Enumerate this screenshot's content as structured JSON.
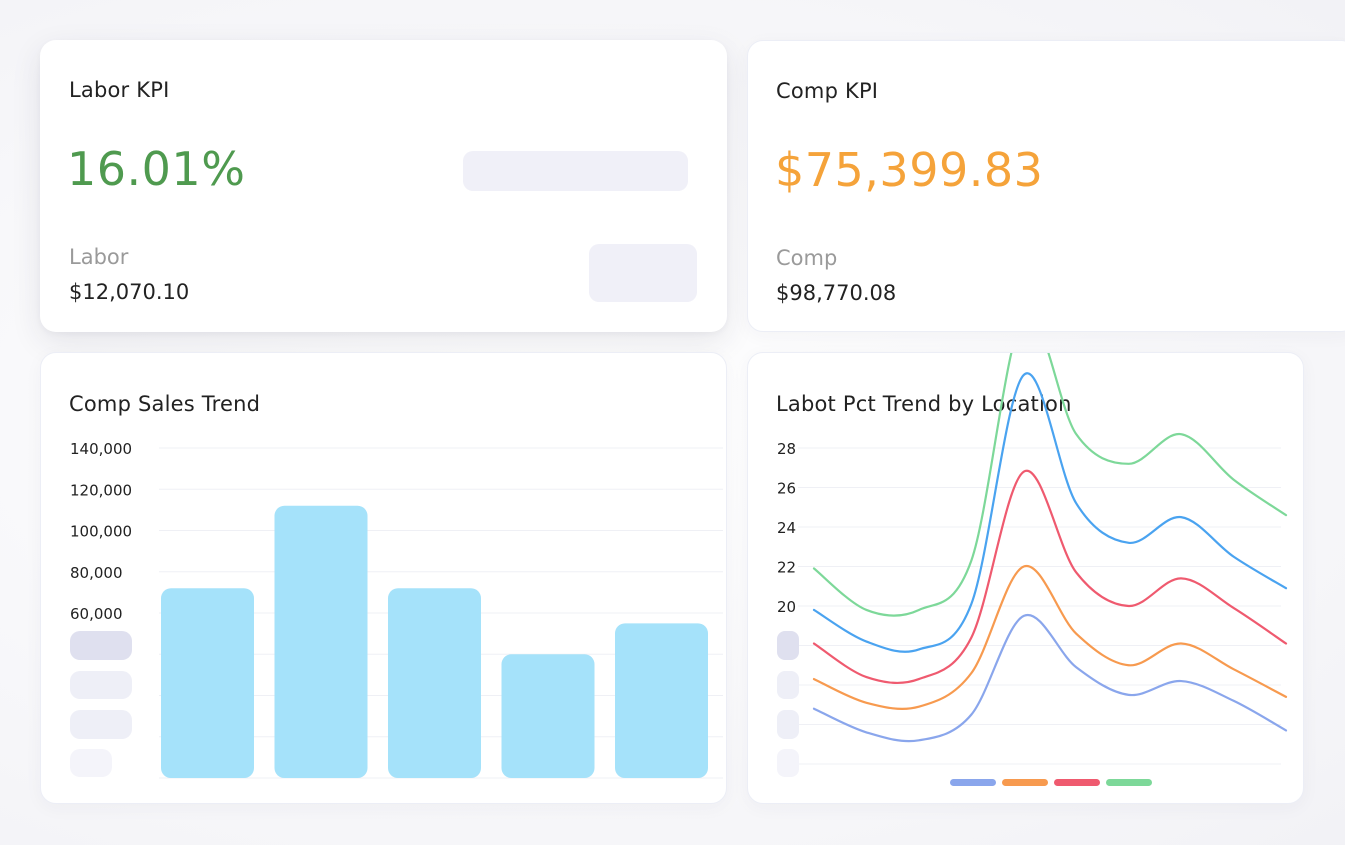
{
  "labor_kpi": {
    "title": "Labor KPI",
    "value": "16.01%",
    "value_color": "#4f9a4f",
    "sub_label": "Labor",
    "sub_value": "$12,070.10"
  },
  "comp_kpi": {
    "title": "Comp KPI",
    "value": "$75,399.83",
    "value_color": "#f5a33a",
    "sub_label": "Comp",
    "sub_value": "$98,770.08"
  },
  "comp_sales_trend": {
    "title": "Comp Sales Trend"
  },
  "labor_pct_trend": {
    "title": "Labot Pct Trend by Location"
  },
  "chart_data": [
    {
      "type": "bar",
      "title": "Comp Sales Trend",
      "categories": [
        "",
        "",
        "",
        "",
        ""
      ],
      "values": [
        72000,
        112000,
        72000,
        40000,
        55000
      ],
      "y_tick_labels": [
        "60,000",
        "80,000",
        "100,000",
        "120,000",
        "140,000"
      ],
      "y_tick_values": [
        60000,
        80000,
        100000,
        120000,
        140000
      ],
      "ylim": [
        -20000,
        140000
      ],
      "grid": true,
      "color": "#a5e2fa"
    },
    {
      "type": "line",
      "title": "Labot Pct Trend by Location",
      "x": [
        0,
        1,
        2,
        3,
        4,
        5,
        6,
        7,
        8,
        9
      ],
      "series": [
        {
          "values": [
            14.8,
            13.6,
            13.2,
            14.5,
            19.5,
            16.9,
            15.5,
            16.2,
            15.2,
            13.7
          ],
          "color": "#8aa6ec"
        },
        {
          "values": [
            16.3,
            15.1,
            14.9,
            16.6,
            22.0,
            18.6,
            17.0,
            18.1,
            16.8,
            15.4
          ],
          "color": "#f79a4f"
        },
        {
          "values": [
            18.1,
            16.4,
            16.3,
            18.4,
            26.8,
            21.7,
            20.0,
            21.4,
            19.9,
            18.1
          ],
          "color": "#ef5a6f"
        },
        {
          "values": [
            19.8,
            18.2,
            17.8,
            20.1,
            31.7,
            25.2,
            23.2,
            24.5,
            22.5,
            20.9
          ],
          "color": "#4aa3f0"
        },
        {
          "values": [
            21.9,
            19.8,
            19.8,
            22.3,
            34.7,
            28.7,
            27.2,
            28.7,
            26.4,
            24.6
          ],
          "color": "#7dd899"
        }
      ],
      "y_tick_labels": [
        "20",
        "22",
        "24",
        "26",
        "28"
      ],
      "y_tick_values": [
        20,
        22,
        24,
        26,
        28
      ],
      "ylim": [
        12,
        28
      ],
      "grid": true,
      "legend_colors": [
        "#8aa6ec",
        "#f79a4f",
        "#ef5a6f",
        "#7dd899"
      ]
    }
  ]
}
